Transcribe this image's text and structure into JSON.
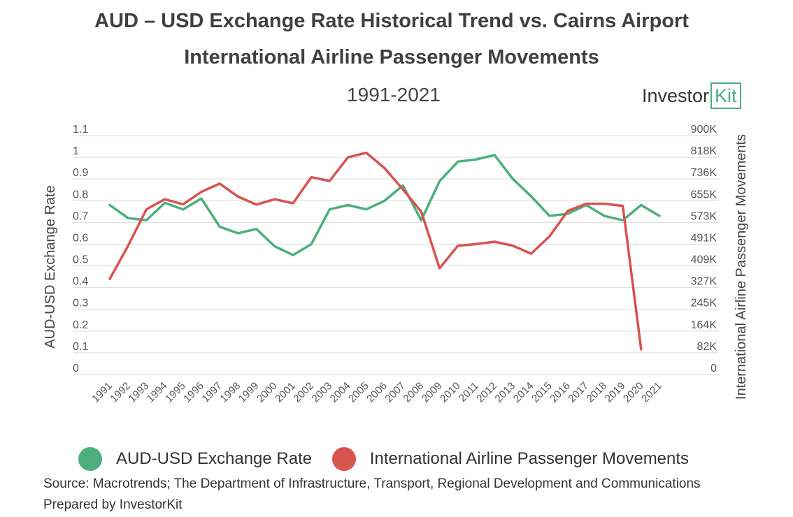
{
  "header": {
    "title_line1": "AUD – USD Exchange Rate Historical Trend vs. Cairns Airport",
    "title_line2": "International Airline Passenger Movements",
    "subtitle": "1991-2021",
    "logo_text": "Investor",
    "logo_box_text": "Kit"
  },
  "footer": {
    "source": "Source: Macrotrends; The Department of Infrastructure, Transport, Regional Development and Communications",
    "prepared": "Prepared by InvestorKit"
  },
  "colors": {
    "aud": "#4caf7d",
    "passengers": "#d9534f",
    "grid": "#d9d9d9"
  },
  "chart_data": {
    "type": "line",
    "x": [
      "1991",
      "1992",
      "1993",
      "1994",
      "1995",
      "1996",
      "1997",
      "1998",
      "1999",
      "2000",
      "2001",
      "2002",
      "2003",
      "2004",
      "2005",
      "2006",
      "2007",
      "2008",
      "2009",
      "2010",
      "2011",
      "2012",
      "2013",
      "2014",
      "2015",
      "2016",
      "2017",
      "2018",
      "2019",
      "2020",
      "2021"
    ],
    "left_axis": {
      "label": "AUD-USD Exchange Rate",
      "range": [
        0,
        1.1
      ],
      "ticks": [
        "1.1",
        "1",
        "0.9",
        "0.8",
        "0.7",
        "0.6",
        "0.5",
        "0.4",
        "0.3",
        "0.2",
        "0.1",
        "0"
      ]
    },
    "right_axis": {
      "label": "International Airline Passenger Movements",
      "range": [
        0,
        900000
      ],
      "ticks": [
        "900K",
        "818K",
        "736K",
        "655K",
        "573K",
        "491K",
        "409K",
        "327K",
        "245K",
        "164K",
        "82K",
        "0"
      ]
    },
    "series": [
      {
        "name": "AUD-USD Exchange Rate",
        "axis": "left",
        "color": "#4caf7d",
        "values": [
          0.78,
          0.72,
          0.71,
          0.79,
          0.76,
          0.81,
          0.68,
          0.65,
          0.67,
          0.59,
          0.55,
          0.6,
          0.76,
          0.78,
          0.76,
          0.8,
          0.87,
          0.71,
          0.89,
          0.98,
          0.99,
          1.01,
          0.9,
          0.82,
          0.73,
          0.74,
          0.78,
          0.73,
          0.71,
          0.78,
          0.73
        ]
      },
      {
        "name": "International Airline Passenger Movements",
        "axis": "right",
        "color": "#d9534f",
        "values": [
          360000,
          485000,
          622000,
          660000,
          641000,
          688000,
          719000,
          670000,
          640000,
          660000,
          645000,
          743000,
          729000,
          818000,
          835000,
          777000,
          697000,
          613000,
          400000,
          485000,
          491000,
          500000,
          485000,
          455000,
          520000,
          616000,
          643000,
          643000,
          635000,
          95000,
          null
        ]
      }
    ],
    "legend_position": "bottom",
    "grid": true
  }
}
